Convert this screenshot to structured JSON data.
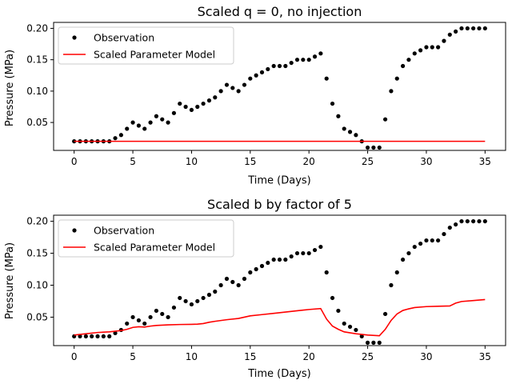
{
  "chart_data": [
    {
      "type": "scatter+line",
      "title": "Scaled q = 0, no injection",
      "xlabel": "Time (Days)",
      "ylabel": "Pressure (MPa)",
      "xlim": [
        -1.75,
        36.75
      ],
      "ylim": [
        0.0055,
        0.2095
      ],
      "xticks": [
        0,
        5,
        10,
        15,
        20,
        25,
        30,
        35
      ],
      "yticks": [
        0.05,
        0.1,
        0.15,
        0.2
      ],
      "grid": false,
      "legend_position": "upper-left",
      "series": [
        {
          "name": "Observation",
          "kind": "scatter",
          "color": "#000000",
          "points": [
            [
              0,
              0.02
            ],
            [
              0.5,
              0.02
            ],
            [
              1,
              0.02
            ],
            [
              1.5,
              0.02
            ],
            [
              2,
              0.02
            ],
            [
              2.5,
              0.02
            ],
            [
              3,
              0.02
            ],
            [
              3.5,
              0.025
            ],
            [
              4,
              0.03
            ],
            [
              4.5,
              0.04
            ],
            [
              5,
              0.05
            ],
            [
              5.5,
              0.045
            ],
            [
              6,
              0.04
            ],
            [
              6.5,
              0.05
            ],
            [
              7,
              0.06
            ],
            [
              7.5,
              0.055
            ],
            [
              8,
              0.05
            ],
            [
              8.5,
              0.065
            ],
            [
              9,
              0.08
            ],
            [
              9.5,
              0.075
            ],
            [
              10,
              0.07
            ],
            [
              10.5,
              0.075
            ],
            [
              11,
              0.08
            ],
            [
              11.5,
              0.085
            ],
            [
              12,
              0.09
            ],
            [
              12.5,
              0.1
            ],
            [
              13,
              0.11
            ],
            [
              13.5,
              0.105
            ],
            [
              14,
              0.1
            ],
            [
              14.5,
              0.11
            ],
            [
              15,
              0.12
            ],
            [
              15.5,
              0.125
            ],
            [
              16,
              0.13
            ],
            [
              16.5,
              0.135
            ],
            [
              17,
              0.14
            ],
            [
              17.5,
              0.14
            ],
            [
              18,
              0.14
            ],
            [
              18.5,
              0.145
            ],
            [
              19,
              0.15
            ],
            [
              19.5,
              0.15
            ],
            [
              20,
              0.15
            ],
            [
              20.5,
              0.155
            ],
            [
              21,
              0.16
            ],
            [
              21.5,
              0.12
            ],
            [
              22,
              0.08
            ],
            [
              22.5,
              0.06
            ],
            [
              23,
              0.04
            ],
            [
              23.5,
              0.035
            ],
            [
              24,
              0.03
            ],
            [
              24.5,
              0.02
            ],
            [
              25,
              0.01
            ],
            [
              25.5,
              0.01
            ],
            [
              26,
              0.01
            ],
            [
              26.5,
              0.055
            ],
            [
              27,
              0.1
            ],
            [
              27.5,
              0.12
            ],
            [
              28,
              0.14
            ],
            [
              28.5,
              0.15
            ],
            [
              29,
              0.16
            ],
            [
              29.5,
              0.165
            ],
            [
              30,
              0.17
            ],
            [
              30.5,
              0.17
            ],
            [
              31,
              0.17
            ],
            [
              31.5,
              0.18
            ],
            [
              32,
              0.19
            ],
            [
              32.5,
              0.195
            ],
            [
              33,
              0.2
            ],
            [
              33.5,
              0.2
            ],
            [
              34,
              0.2
            ],
            [
              34.5,
              0.2
            ],
            [
              35,
              0.2
            ]
          ]
        },
        {
          "name": "Scaled Parameter Model",
          "kind": "line",
          "color": "#ff0000",
          "points": [
            [
              0,
              0.02
            ],
            [
              35,
              0.02
            ]
          ]
        }
      ]
    },
    {
      "type": "scatter+line",
      "title": "Scaled b by factor of 5",
      "xlabel": "Time (Days)",
      "ylabel": "Pressure (MPa)",
      "xlim": [
        -1.75,
        36.75
      ],
      "ylim": [
        0.0055,
        0.2095
      ],
      "xticks": [
        0,
        5,
        10,
        15,
        20,
        25,
        30,
        35
      ],
      "yticks": [
        0.05,
        0.1,
        0.15,
        0.2
      ],
      "grid": false,
      "legend_position": "upper-left",
      "series": [
        {
          "name": "Observation",
          "kind": "scatter",
          "color": "#000000",
          "points": [
            [
              0,
              0.02
            ],
            [
              0.5,
              0.02
            ],
            [
              1,
              0.02
            ],
            [
              1.5,
              0.02
            ],
            [
              2,
              0.02
            ],
            [
              2.5,
              0.02
            ],
            [
              3,
              0.02
            ],
            [
              3.5,
              0.025
            ],
            [
              4,
              0.03
            ],
            [
              4.5,
              0.04
            ],
            [
              5,
              0.05
            ],
            [
              5.5,
              0.045
            ],
            [
              6,
              0.04
            ],
            [
              6.5,
              0.05
            ],
            [
              7,
              0.06
            ],
            [
              7.5,
              0.055
            ],
            [
              8,
              0.05
            ],
            [
              8.5,
              0.065
            ],
            [
              9,
              0.08
            ],
            [
              9.5,
              0.075
            ],
            [
              10,
              0.07
            ],
            [
              10.5,
              0.075
            ],
            [
              11,
              0.08
            ],
            [
              11.5,
              0.085
            ],
            [
              12,
              0.09
            ],
            [
              12.5,
              0.1
            ],
            [
              13,
              0.11
            ],
            [
              13.5,
              0.105
            ],
            [
              14,
              0.1
            ],
            [
              14.5,
              0.11
            ],
            [
              15,
              0.12
            ],
            [
              15.5,
              0.125
            ],
            [
              16,
              0.13
            ],
            [
              16.5,
              0.135
            ],
            [
              17,
              0.14
            ],
            [
              17.5,
              0.14
            ],
            [
              18,
              0.14
            ],
            [
              18.5,
              0.145
            ],
            [
              19,
              0.15
            ],
            [
              19.5,
              0.15
            ],
            [
              20,
              0.15
            ],
            [
              20.5,
              0.155
            ],
            [
              21,
              0.16
            ],
            [
              21.5,
              0.12
            ],
            [
              22,
              0.08
            ],
            [
              22.5,
              0.06
            ],
            [
              23,
              0.04
            ],
            [
              23.5,
              0.035
            ],
            [
              24,
              0.03
            ],
            [
              24.5,
              0.02
            ],
            [
              25,
              0.01
            ],
            [
              25.5,
              0.01
            ],
            [
              26,
              0.01
            ],
            [
              26.5,
              0.055
            ],
            [
              27,
              0.1
            ],
            [
              27.5,
              0.12
            ],
            [
              28,
              0.14
            ],
            [
              28.5,
              0.15
            ],
            [
              29,
              0.16
            ],
            [
              29.5,
              0.165
            ],
            [
              30,
              0.17
            ],
            [
              30.5,
              0.17
            ],
            [
              31,
              0.17
            ],
            [
              31.5,
              0.18
            ],
            [
              32,
              0.19
            ],
            [
              32.5,
              0.195
            ],
            [
              33,
              0.2
            ],
            [
              33.5,
              0.2
            ],
            [
              34,
              0.2
            ],
            [
              34.5,
              0.2
            ],
            [
              35,
              0.2
            ]
          ]
        },
        {
          "name": "Scaled Parameter Model",
          "kind": "line",
          "color": "#ff0000",
          "points": [
            [
              0,
              0.022
            ],
            [
              1,
              0.024
            ],
            [
              2,
              0.026
            ],
            [
              3,
              0.027
            ],
            [
              4,
              0.029
            ],
            [
              4.5,
              0.031
            ],
            [
              5,
              0.034
            ],
            [
              5.5,
              0.035
            ],
            [
              6,
              0.0345
            ],
            [
              6.5,
              0.036
            ],
            [
              7,
              0.037
            ],
            [
              8,
              0.038
            ],
            [
              9,
              0.0385
            ],
            [
              10,
              0.0388
            ],
            [
              10.5,
              0.039
            ],
            [
              11,
              0.04
            ],
            [
              11.5,
              0.042
            ],
            [
              12,
              0.0435
            ],
            [
              13,
              0.046
            ],
            [
              14,
              0.048
            ],
            [
              14.5,
              0.05
            ],
            [
              15,
              0.052
            ],
            [
              16,
              0.054
            ],
            [
              17,
              0.056
            ],
            [
              18,
              0.058
            ],
            [
              19,
              0.06
            ],
            [
              20,
              0.062
            ],
            [
              21,
              0.0635
            ],
            [
              21.5,
              0.047
            ],
            [
              22,
              0.036
            ],
            [
              22.5,
              0.031
            ],
            [
              23,
              0.027
            ],
            [
              24,
              0.024
            ],
            [
              25,
              0.022
            ],
            [
              26,
              0.021
            ],
            [
              26.5,
              0.031
            ],
            [
              27,
              0.045
            ],
            [
              27.5,
              0.055
            ],
            [
              28,
              0.0605
            ],
            [
              28.5,
              0.063
            ],
            [
              29,
              0.065
            ],
            [
              30,
              0.0665
            ],
            [
              31,
              0.067
            ],
            [
              32,
              0.0675
            ],
            [
              32.5,
              0.072
            ],
            [
              33,
              0.0745
            ],
            [
              34,
              0.076
            ],
            [
              35,
              0.0775
            ]
          ]
        }
      ]
    }
  ]
}
